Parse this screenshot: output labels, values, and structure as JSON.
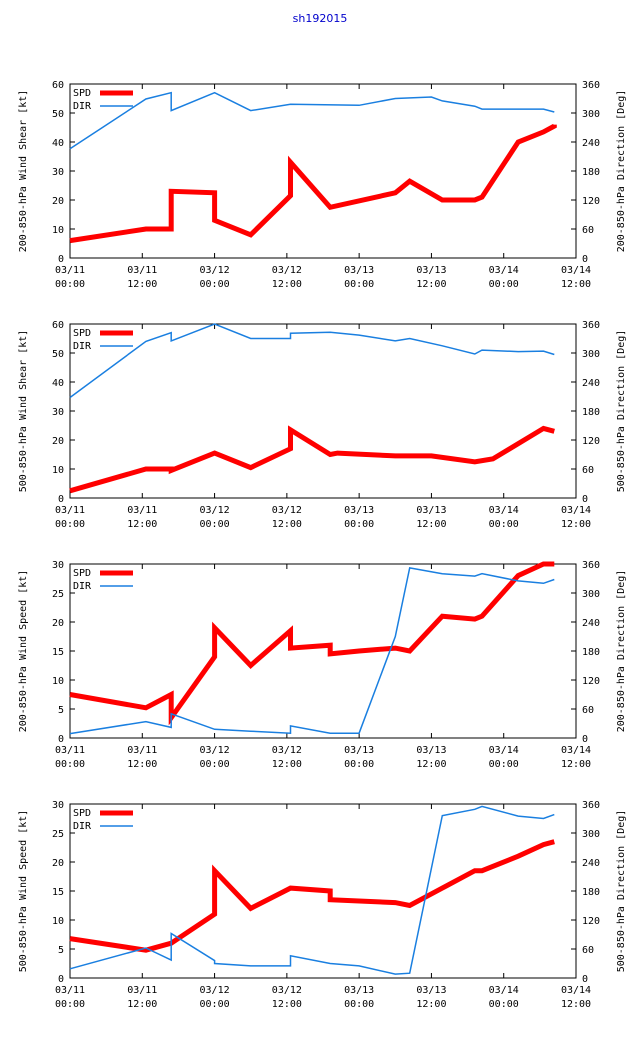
{
  "title": "sh192015",
  "colors": {
    "spd": "#ff0000",
    "dir": "#1a7fe0",
    "frame": "#000000"
  },
  "x_ticks": [
    {
      "t": 0,
      "date": "03/11",
      "time": "00:00"
    },
    {
      "t": 12,
      "date": "03/11",
      "time": "12:00"
    },
    {
      "t": 24,
      "date": "03/12",
      "time": "00:00"
    },
    {
      "t": 36,
      "date": "03/12",
      "time": "12:00"
    },
    {
      "t": 48,
      "date": "03/13",
      "time": "00:00"
    },
    {
      "t": 60,
      "date": "03/13",
      "time": "12:00"
    },
    {
      "t": 72,
      "date": "03/14",
      "time": "00:00"
    },
    {
      "t": 84,
      "date": "03/14",
      "time": "12:00"
    }
  ],
  "chart_data": [
    {
      "type": "line",
      "xlim": [
        0,
        84
      ],
      "ylabel": "200-850-hPa Wind Shear [kt]",
      "ylabel_right": "200-850-hPa Direction [Deg]",
      "ylim": [
        0,
        60
      ],
      "ylim_right": [
        0,
        360
      ],
      "yticks": [
        0,
        10,
        20,
        30,
        40,
        50,
        60
      ],
      "yticks_right": [
        0,
        60,
        120,
        180,
        240,
        300,
        360
      ],
      "legend": [
        "SPD",
        "DIR"
      ],
      "series": [
        {
          "name": "SPD",
          "axis": "left",
          "x": [
            0,
            12.6,
            16.8,
            16.8,
            24,
            24,
            30,
            36.6,
            36.6,
            43.2,
            54,
            56.4,
            61.8,
            67.2,
            68.4,
            74.4,
            78.6,
            80.4,
            80.4
          ],
          "y": [
            6,
            10,
            10,
            23,
            22.5,
            13,
            8,
            21.5,
            33,
            17.5,
            22.5,
            26.5,
            20,
            20,
            21,
            40,
            43.5,
            45.5,
            46
          ]
        },
        {
          "name": "DIR",
          "axis": "right",
          "x": [
            0,
            12.6,
            16.8,
            16.8,
            24,
            30,
            36.6,
            48,
            54,
            60,
            61.8,
            67.2,
            68.4,
            72,
            78.6,
            80.4
          ],
          "y": [
            226,
            329,
            342,
            305,
            342,
            305,
            318,
            316,
            330,
            333,
            325,
            314,
            308,
            308,
            308,
            302
          ]
        }
      ]
    },
    {
      "type": "line",
      "xlim": [
        0,
        84
      ],
      "ylabel": "500-850-hPa Wind Shear [kt]",
      "ylabel_right": "500-850-hPa Direction [Deg]",
      "ylim": [
        0,
        60
      ],
      "ylim_right": [
        0,
        360
      ],
      "yticks": [
        0,
        10,
        20,
        30,
        40,
        50,
        60
      ],
      "yticks_right": [
        0,
        60,
        120,
        180,
        240,
        300,
        360
      ],
      "legend": [
        "SPD",
        "DIR"
      ],
      "series": [
        {
          "name": "SPD",
          "axis": "left",
          "x": [
            0,
            12.6,
            16.8,
            16.8,
            24,
            30,
            36.6,
            36.6,
            43.2,
            44.4,
            54,
            60,
            67.2,
            70.2,
            78.6,
            80.4
          ],
          "y": [
            2.5,
            10,
            10,
            9.5,
            15.5,
            10.5,
            17,
            23.5,
            15,
            15.5,
            14.5,
            14.5,
            12.5,
            13.5,
            24,
            23
          ]
        },
        {
          "name": "DIR",
          "axis": "right",
          "x": [
            0,
            12.6,
            16.8,
            16.8,
            24,
            30,
            36.6,
            36.6,
            43.2,
            48,
            54,
            56.4,
            61.8,
            67.2,
            68.4,
            74.4,
            78.6,
            80.4
          ],
          "y": [
            208,
            324,
            342,
            325,
            360,
            330,
            330,
            341,
            343,
            337,
            325,
            330,
            315,
            298,
            306,
            303,
            304,
            297
          ]
        }
      ]
    },
    {
      "type": "line",
      "xlim": [
        0,
        84
      ],
      "ylabel": "200-850-hPa Wind Speed [kt]",
      "ylabel_right": "200-850-hPa Direction [Deg]",
      "ylim": [
        0,
        30
      ],
      "ylim_right": [
        0,
        360
      ],
      "yticks": [
        0,
        5,
        10,
        15,
        20,
        25,
        30
      ],
      "yticks_right": [
        0,
        60,
        120,
        180,
        240,
        300,
        360
      ],
      "legend": [
        "SPD",
        "DIR"
      ],
      "series": [
        {
          "name": "SPD",
          "axis": "left",
          "x": [
            0,
            12.6,
            16.8,
            16.8,
            24,
            24,
            30,
            36.6,
            36.6,
            43.2,
            43.2,
            48,
            54,
            56.4,
            61.8,
            67.2,
            68.4,
            74.4,
            78.6,
            80.4
          ],
          "y": [
            7.5,
            5.2,
            7.5,
            3.5,
            14,
            19,
            12.5,
            18.5,
            15.5,
            16,
            14.5,
            15,
            15.5,
            15,
            21,
            20.5,
            21,
            28,
            30,
            30
          ]
        },
        {
          "name": "DIR",
          "axis": "right",
          "x": [
            0,
            12.6,
            16.8,
            16.8,
            24,
            30,
            36.6,
            36.6,
            43.2,
            48,
            54,
            56.4,
            61.8,
            67.2,
            68.4,
            74.4,
            78.6,
            80.4
          ],
          "y": [
            9,
            34,
            22,
            50,
            18,
            14,
            10,
            25,
            10,
            10,
            210,
            352,
            340,
            335,
            340,
            325,
            320,
            328
          ]
        }
      ]
    },
    {
      "type": "line",
      "xlim": [
        0,
        84
      ],
      "ylabel": "500-850-hPa Wind Speed [kt]",
      "ylabel_right": "500-850-hPa Direction [Deg]",
      "ylim": [
        0,
        30
      ],
      "ylim_right": [
        0,
        360
      ],
      "yticks": [
        0,
        5,
        10,
        15,
        20,
        25,
        30
      ],
      "yticks_right": [
        0,
        60,
        120,
        180,
        240,
        300,
        360
      ],
      "legend": [
        "SPD",
        "DIR"
      ],
      "series": [
        {
          "name": "SPD",
          "axis": "left",
          "x": [
            0,
            12.6,
            16.8,
            24,
            24,
            30,
            36.6,
            43.2,
            43.2,
            54,
            56.4,
            61.8,
            67.2,
            68.4,
            74.4,
            78.6,
            80.4
          ],
          "y": [
            6.8,
            4.8,
            6,
            11,
            18.5,
            12,
            15.5,
            15,
            13.5,
            13,
            12.5,
            15.5,
            18.5,
            18.5,
            21,
            23,
            23.5
          ]
        },
        {
          "name": "DIR",
          "axis": "right",
          "x": [
            0,
            12.6,
            16.8,
            16.8,
            24,
            24,
            30,
            36.6,
            36.6,
            43.2,
            48,
            54,
            56.4,
            61.8,
            67.2,
            68.4,
            74.4,
            78.6,
            80.4
          ],
          "y": [
            19,
            62,
            37,
            92,
            36,
            30,
            25,
            25,
            46,
            30,
            25,
            8,
            10,
            336,
            349,
            355,
            335,
            330,
            338
          ]
        }
      ]
    }
  ]
}
